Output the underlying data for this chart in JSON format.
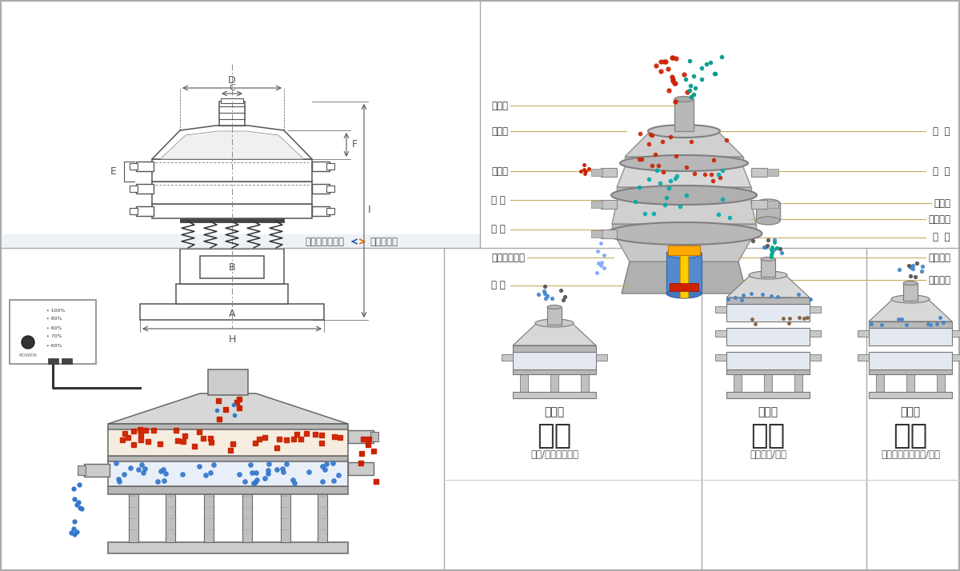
{
  "bg_color": "#ffffff",
  "left_labels": [
    "进料口",
    "防尘盖",
    "出料口",
    "束 环",
    "弹 簧",
    "运输固定螺栓",
    "机 座"
  ],
  "right_labels": [
    "筛  网",
    "网  架",
    "加重块",
    "上部重锤",
    "筛  盘",
    "振动电机",
    "下部重锤"
  ],
  "bottom_titles": [
    "分级",
    "过滤",
    "除杂"
  ],
  "bottom_subtitles": [
    "颗粒/粉末准确分级",
    "去除异物/结块",
    "去除液体中的颗粒/异物"
  ],
  "bottom_sub_types": [
    "单层式",
    "三层式",
    "双层式"
  ],
  "nav_left": "外形尺寸示意图",
  "nav_right": "结构示意图"
}
